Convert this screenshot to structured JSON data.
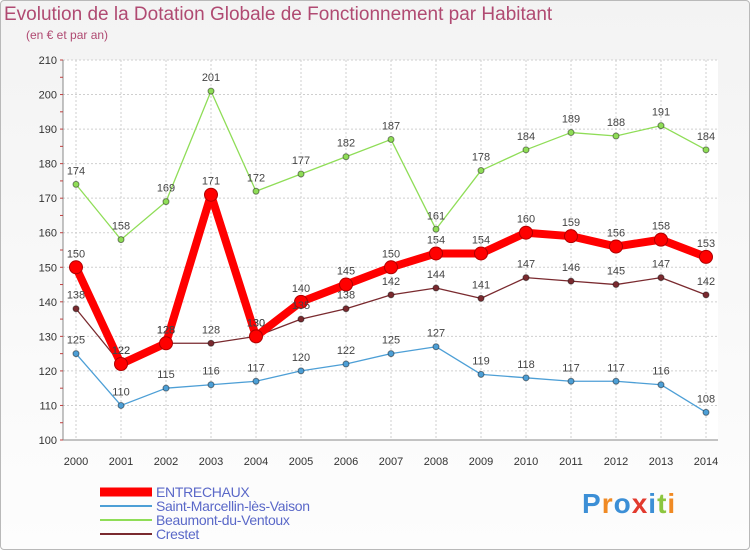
{
  "chart_data": {
    "type": "line",
    "title": "Evolution de la Dotation Globale de Fonctionnement par Habitant",
    "subtitle": "(en € et par an)",
    "xlabel": "",
    "ylabel": "",
    "ylim": [
      100,
      210
    ],
    "yticks": [
      100,
      110,
      120,
      130,
      140,
      150,
      160,
      170,
      180,
      190,
      200,
      210
    ],
    "x": [
      "2000",
      "2001",
      "2002",
      "2003",
      "2004",
      "2005",
      "2006",
      "2007",
      "2008",
      "2009",
      "2010",
      "2011",
      "2012",
      "2013",
      "2014"
    ],
    "series": [
      {
        "name": "ENTRECHAUX",
        "color": "#ff0000",
        "emphasis": true,
        "values": [
          150,
          122,
          128,
          171,
          130,
          140,
          145,
          150,
          154,
          154,
          160,
          159,
          156,
          158,
          153
        ]
      },
      {
        "name": "Saint-Marcellin-lès-Vaison",
        "color": "#4d9fd6",
        "values": [
          125,
          110,
          115,
          116,
          117,
          120,
          122,
          125,
          127,
          119,
          118,
          117,
          117,
          116,
          108
        ]
      },
      {
        "name": "Beaumont-du-Ventoux",
        "color": "#8fdd57",
        "values": [
          174,
          158,
          169,
          201,
          172,
          177,
          182,
          187,
          161,
          178,
          184,
          189,
          188,
          191,
          184
        ]
      },
      {
        "name": "Crestet",
        "color": "#7a2a2f",
        "values": [
          138,
          122,
          128,
          128,
          130,
          135,
          138,
          142,
          144,
          141,
          147,
          146,
          145,
          147,
          142
        ]
      }
    ],
    "grid": true
  },
  "logo": {
    "text": "Proxiti",
    "letters": [
      "P",
      "r",
      "o",
      "x",
      "i",
      "t",
      "i"
    ],
    "colors": [
      "#3c8fd6",
      "#f08a24",
      "#3c8fd6",
      "#e23a2e",
      "#3c8fd6",
      "#8cc63f",
      "#f08a24"
    ]
  }
}
